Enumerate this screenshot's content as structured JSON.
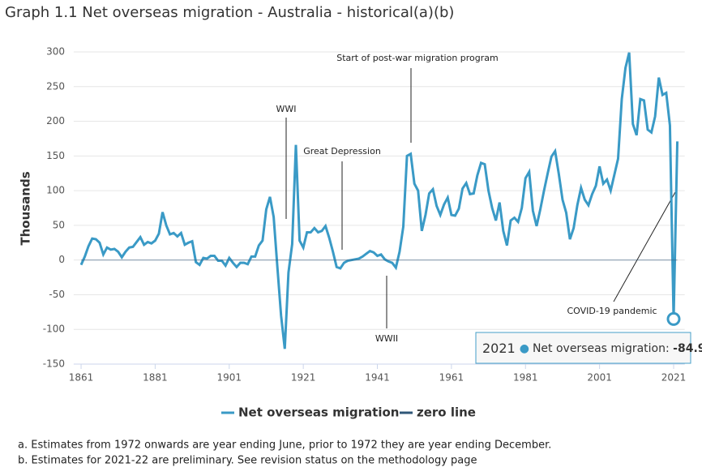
{
  "chart_data": {
    "type": "line",
    "title": "Graph 1.1 Net overseas migration - Australia - historical(a)(b)",
    "y_label": "Thousands",
    "x": [
      1861,
      1862,
      1863,
      1864,
      1865,
      1866,
      1867,
      1868,
      1869,
      1870,
      1871,
      1872,
      1873,
      1874,
      1875,
      1876,
      1877,
      1878,
      1879,
      1880,
      1881,
      1882,
      1883,
      1884,
      1885,
      1886,
      1887,
      1888,
      1889,
      1890,
      1891,
      1892,
      1893,
      1894,
      1895,
      1896,
      1897,
      1898,
      1899,
      1900,
      1901,
      1902,
      1903,
      1904,
      1905,
      1906,
      1907,
      1908,
      1909,
      1910,
      1911,
      1912,
      1913,
      1914,
      1915,
      1916,
      1917,
      1918,
      1919,
      1920,
      1921,
      1922,
      1923,
      1924,
      1925,
      1926,
      1927,
      1928,
      1929,
      1930,
      1931,
      1932,
      1933,
      1934,
      1935,
      1936,
      1937,
      1938,
      1939,
      1940,
      1941,
      1942,
      1943,
      1944,
      1945,
      1946,
      1947,
      1948,
      1949,
      1950,
      1951,
      1952,
      1953,
      1954,
      1955,
      1956,
      1957,
      1958,
      1959,
      1960,
      1961,
      1962,
      1963,
      1964,
      1965,
      1966,
      1967,
      1968,
      1969,
      1970,
      1971,
      1972,
      1973,
      1974,
      1975,
      1976,
      1977,
      1978,
      1979,
      1980,
      1981,
      1982,
      1983,
      1984,
      1985,
      1986,
      1987,
      1988,
      1989,
      1990,
      1991,
      1992,
      1993,
      1994,
      1995,
      1996,
      1997,
      1998,
      1999,
      2000,
      2001,
      2002,
      2003,
      2004,
      2005,
      2006,
      2007,
      2008,
      2009,
      2010,
      2011,
      2012,
      2013,
      2014,
      2015,
      2016,
      2017,
      2018,
      2019,
      2020,
      2021,
      2022
    ],
    "series": [
      {
        "name": "Net overseas migration",
        "color": "#3a9ac6",
        "values": [
          -7,
          5,
          20,
          31,
          30,
          25,
          8,
          18,
          15,
          16,
          12,
          4,
          12,
          18,
          19,
          26,
          33,
          22,
          26,
          24,
          28,
          38,
          69,
          50,
          37,
          39,
          34,
          39,
          22,
          25,
          27,
          -3,
          -7,
          3,
          2,
          6,
          6,
          -1,
          -1,
          -8,
          3,
          -4,
          -10,
          -4,
          -4,
          -6,
          5,
          5,
          21,
          28,
          73,
          91,
          62,
          -10,
          -80,
          -128,
          -18,
          23,
          166,
          28,
          18,
          40,
          40,
          46,
          40,
          42,
          49,
          32,
          12,
          -10,
          -12,
          -4,
          -1,
          0,
          1,
          2,
          5,
          9,
          13,
          11,
          6,
          8,
          1,
          -2,
          -4,
          -11,
          12,
          48,
          150,
          153,
          110,
          100,
          42,
          65,
          96,
          102,
          78,
          65,
          80,
          90,
          65,
          64,
          74,
          103,
          111,
          95,
          96,
          122,
          140,
          138,
          100,
          75,
          57,
          83,
          42,
          21,
          57,
          61,
          55,
          75,
          118,
          127,
          71,
          49,
          73,
          100,
          125,
          149,
          157,
          124,
          87,
          68,
          30,
          46,
          79,
          104,
          87,
          79,
          95,
          107,
          135,
          110,
          116,
          100,
          123,
          146,
          232,
          277,
          299,
          196,
          180,
          232,
          230,
          188,
          184,
          207,
          263,
          238,
          241,
          194,
          -84.94,
          171
        ]
      },
      {
        "name": "zero line",
        "color": "#2f5778",
        "x": [
          1861,
          2022
        ],
        "values": [
          0,
          0
        ]
      }
    ],
    "xlim": [
      1859,
      2024
    ],
    "xticks": [
      1861,
      1881,
      1901,
      1921,
      1941,
      1961,
      1981,
      2001,
      2021
    ],
    "ylim": [
      -150,
      300
    ],
    "yticks": [
      -150,
      -100,
      -50,
      0,
      50,
      100,
      150,
      200,
      250,
      300
    ],
    "grid": true,
    "legend": "bottom",
    "annotations": [
      "WWI",
      "Great Depression",
      "Start of post-war migration program",
      "WWII",
      "COVID-19 pandemic"
    ],
    "tooltip_index": 160,
    "footnotes": [
      "a. Estimates from 1972 onwards are year ending June, prior to 1972 they are year ending December.",
      "b. Estimates for 2021-22 are preliminary. See revision status on the methodology page"
    ]
  }
}
